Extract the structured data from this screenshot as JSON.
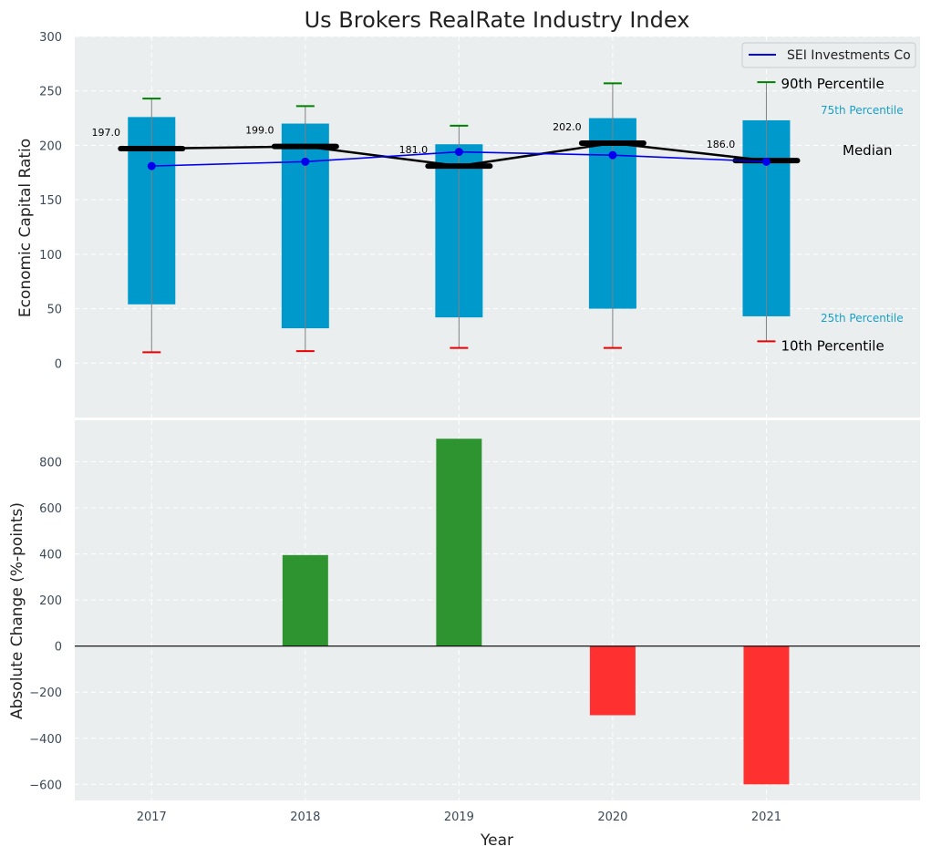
{
  "chart_data": [
    {
      "type": "bar",
      "title": "Us Brokers RealRate Industry Index",
      "ylabel": "Economic Capital Ratio",
      "ylim": [
        -50,
        300
      ],
      "yticks": [
        0,
        50,
        100,
        150,
        200,
        250,
        300
      ],
      "categories": [
        "2017",
        "2018",
        "2019",
        "2020",
        "2021"
      ],
      "p10": [
        10,
        11,
        14,
        14,
        20
      ],
      "p25": [
        54,
        32,
        42,
        50,
        43
      ],
      "median": [
        197.0,
        199.0,
        181.0,
        202.0,
        186.0
      ],
      "median_labels": [
        "197.0",
        "199.0",
        "181.0",
        "202.0",
        "186.0"
      ],
      "p75": [
        226,
        220,
        201,
        225,
        223
      ],
      "p90": [
        243,
        236,
        218,
        257,
        258
      ],
      "series": [
        {
          "name": "SEI Investments Co",
          "values": [
            181,
            185,
            194,
            191,
            185
          ]
        }
      ],
      "legend_position": "top-right",
      "grid": true,
      "annotations": {
        "p90": "90th Percentile",
        "p75": "75th Percentile",
        "median": "Median",
        "p25": "25th Percentile",
        "p10": "10th Percentile"
      },
      "colors": {
        "box": "#0099cc",
        "median": "#000000",
        "company": "#0000ee",
        "p90_cap": "#008000",
        "p10_cap": "#ee0000",
        "whisker": "#808080",
        "pct_label": "#1a9fc7",
        "background": "#eaeeef"
      }
    },
    {
      "type": "bar",
      "xlabel": "Year",
      "ylabel": "Absolute Change (%-points)",
      "ylim": [
        -670,
        980
      ],
      "yticks": [
        -600,
        -400,
        -200,
        0,
        200,
        400,
        600,
        800
      ],
      "ytick_labels": [
        "−600",
        "−400",
        "−200",
        "0",
        "200",
        "400",
        "600",
        "800"
      ],
      "categories": [
        "2017",
        "2018",
        "2019",
        "2020",
        "2021"
      ],
      "values": [
        0,
        395,
        900,
        -300,
        -600
      ],
      "grid": true,
      "colors": {
        "positive": "#2e9430",
        "negative": "#ff3030",
        "zero_line": "#000000"
      }
    }
  ]
}
